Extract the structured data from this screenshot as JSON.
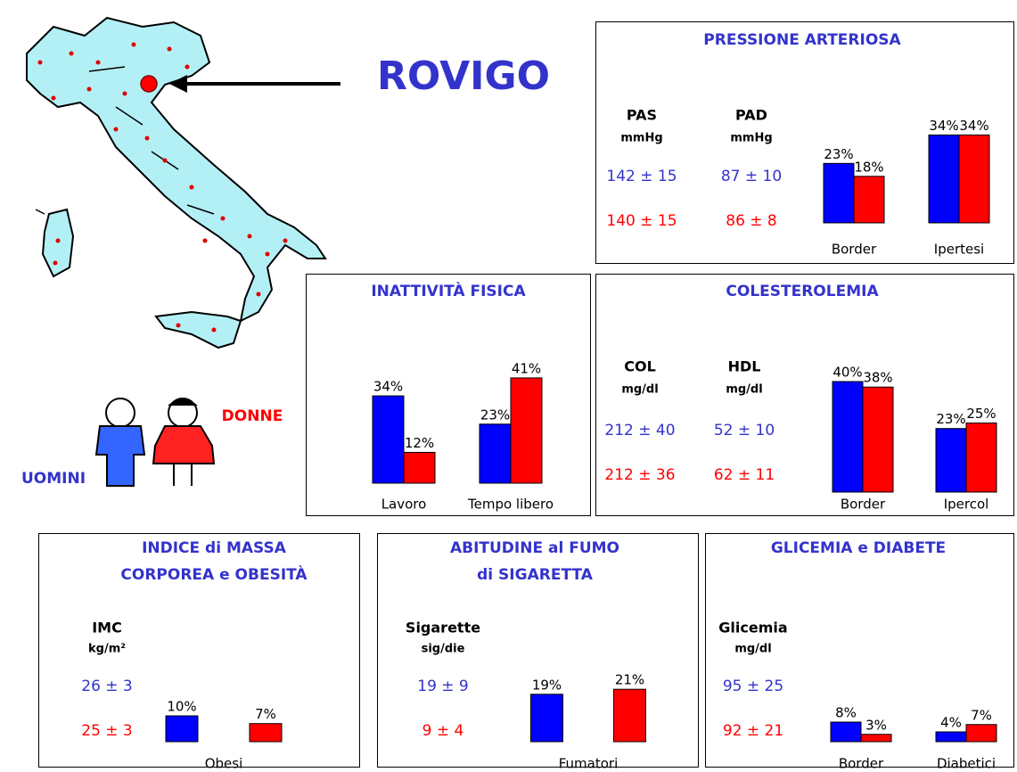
{
  "header": {
    "title": "ROVIGO"
  },
  "legend": [
    {
      "name": "UOMINI",
      "color": "#3333cc"
    },
    {
      "name": "DONNE",
      "color": "#ff0000"
    }
  ],
  "chart_data": [
    {
      "type": "bar",
      "title": "PRESSIONE ARTERIOSA",
      "stats": [
        {
          "label": "PAS",
          "unit": "mmHg",
          "values": [
            "142 ± 15",
            "140 ± 15"
          ]
        },
        {
          "label": "PAD",
          "unit": "mmHg",
          "values": [
            "87 ± 10",
            "86 ± 8"
          ]
        }
      ],
      "categories": [
        "Border",
        "Ipertesi"
      ],
      "series": [
        {
          "color": "#0000ff",
          "values": [
            23,
            34
          ],
          "value_labels": [
            "23%",
            "34%"
          ]
        },
        {
          "color": "#ff0000",
          "values": [
            18,
            34
          ],
          "value_labels": [
            "18%",
            "34%"
          ]
        }
      ]
    },
    {
      "type": "bar",
      "title": "INATTIVITÀ FISICA",
      "categories": [
        "Lavoro",
        "Tempo libero"
      ],
      "series": [
        {
          "color": "#0000ff",
          "values": [
            34,
            23
          ],
          "value_labels": [
            "34%",
            "23%"
          ]
        },
        {
          "color": "#ff0000",
          "values": [
            12,
            41
          ],
          "value_labels": [
            "12%",
            "41%"
          ]
        }
      ]
    },
    {
      "type": "bar",
      "title": "COLESTEROLEMIA",
      "stats": [
        {
          "label": "COL",
          "unit": "mg/dl",
          "values": [
            "212 ± 40",
            "212 ± 36"
          ]
        },
        {
          "label": "HDL",
          "unit": "mg/dl",
          "values": [
            "52 ± 10",
            "62 ± 11"
          ]
        }
      ],
      "categories": [
        "Border",
        "Ipercol"
      ],
      "series": [
        {
          "color": "#0000ff",
          "values": [
            40,
            23
          ],
          "value_labels": [
            "40%",
            "23%"
          ]
        },
        {
          "color": "#ff0000",
          "values": [
            38,
            25
          ],
          "value_labels": [
            "38%",
            "25%"
          ]
        }
      ]
    },
    {
      "type": "bar",
      "title": [
        "INDICE di MASSA",
        "CORPOREA e OBESITÀ"
      ],
      "stats": [
        {
          "label": "IMC",
          "unit": "kg/m²",
          "values": [
            "26 ± 3",
            "25 ± 3"
          ]
        }
      ],
      "categories": [
        "Obesi"
      ],
      "series": [
        {
          "color": "#0000ff",
          "values": [
            10
          ],
          "value_labels": [
            "10%"
          ]
        },
        {
          "color": "#ff0000",
          "values": [
            7
          ],
          "value_labels": [
            "7%"
          ]
        }
      ]
    },
    {
      "type": "bar",
      "title": [
        "ABITUDINE al FUMO",
        "di SIGARETTA"
      ],
      "stats": [
        {
          "label": "Sigarette",
          "unit": "sig/die",
          "values": [
            "19 ± 9",
            "9 ± 4"
          ]
        }
      ],
      "categories": [
        "Fumatori"
      ],
      "series": [
        {
          "color": "#0000ff",
          "values": [
            19
          ],
          "value_labels": [
            "19%"
          ]
        },
        {
          "color": "#ff0000",
          "values": [
            21
          ],
          "value_labels": [
            "21%"
          ]
        }
      ]
    },
    {
      "type": "bar",
      "title": "GLICEMIA e DIABETE",
      "stats": [
        {
          "label": "Glicemia",
          "unit": "mg/dl",
          "values": [
            "95 ± 25",
            "92 ± 21"
          ]
        }
      ],
      "categories": [
        "Border",
        "Diabetici"
      ],
      "series": [
        {
          "color": "#0000ff",
          "values": [
            8,
            4
          ],
          "value_labels": [
            "8%",
            "4%"
          ]
        },
        {
          "color": "#ff0000",
          "values": [
            3,
            7
          ],
          "value_labels": [
            "3%",
            "7%"
          ]
        }
      ]
    }
  ]
}
